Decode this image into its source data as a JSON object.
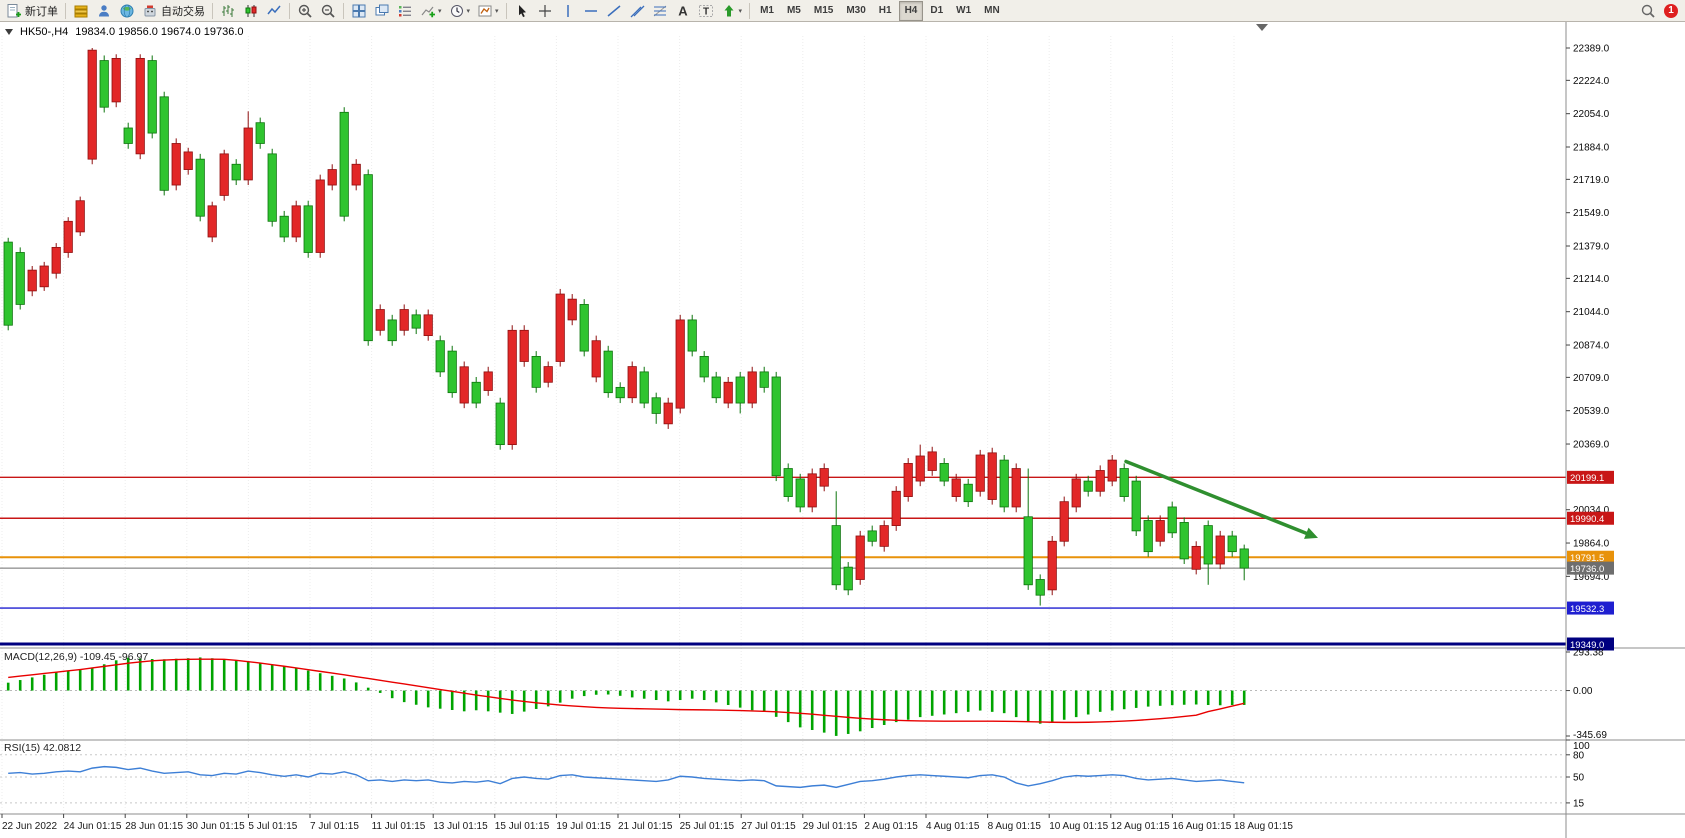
{
  "toolbar": {
    "new_order_label": "新订单",
    "autotrading_label": "自动交易",
    "timeframes": [
      "M1",
      "M5",
      "M15",
      "M30",
      "H1",
      "H4",
      "D1",
      "W1",
      "MN"
    ],
    "active_timeframe": "H4",
    "notification_count": "1"
  },
  "chart": {
    "symbol_period": "HK50-,H4",
    "ohlc_text": "19834.0 19856.0 19674.0 19736.0"
  },
  "indicators": {
    "macd": {
      "text": "MACD(12,26,9) -109.45 -96.97",
      "axis_labels": [
        {
          "v": 293.38,
          "t": "293.38"
        },
        {
          "v": 0,
          "t": "0.00"
        },
        {
          "v": -345.69,
          "t": "-345.69"
        }
      ]
    },
    "rsi": {
      "text": "RSI(15) 42.0812",
      "axis_labels": [
        {
          "v": 100,
          "t": "100"
        },
        {
          "v": 80,
          "t": "80"
        },
        {
          "v": 50,
          "t": "50"
        },
        {
          "v": 15,
          "t": "15"
        }
      ],
      "levels": [
        80,
        50,
        15
      ]
    }
  },
  "price_axis": {
    "regular": [
      22389,
      22224,
      22054,
      21884,
      21719,
      21549,
      21379,
      21214,
      21044,
      20874,
      20709,
      20539,
      20369,
      20034,
      19864,
      19694
    ],
    "badges": [
      {
        "price": 20199.1,
        "label": "20199.1",
        "color": "#c81616"
      },
      {
        "price": 19990.4,
        "label": "19990.4",
        "color": "#c81616"
      },
      {
        "price": 19791.5,
        "label": "19791.5",
        "color": "#e8920a"
      },
      {
        "price": 19736.0,
        "label": "19736.0",
        "color": "#6e6e6e"
      },
      {
        "price": 19532.3,
        "label": "19532.3",
        "color": "#1f1fd0"
      },
      {
        "price": 19349.0,
        "label": "19349.0",
        "color": "#000080"
      }
    ]
  },
  "time_axis": {
    "labels": [
      "22 Jun 2022",
      "24 Jun 01:15",
      "28 Jun 01:15",
      "30 Jun 01:15",
      "5 Jul 01:15",
      "7 Jul 01:15",
      "11 Jul 01:15",
      "13 Jul 01:15",
      "15 Jul 01:15",
      "19 Jul 01:15",
      "21 Jul 01:15",
      "25 Jul 01:15",
      "27 Jul 01:15",
      "29 Jul 01:15",
      "2 Aug 01:15",
      "4 Aug 01:15",
      "8 Aug 01:15",
      "10 Aug 01:15",
      "12 Aug 01:15",
      "16 Aug 01:15",
      "18 Aug 01:15"
    ]
  },
  "chart_data": {
    "type": "candlestick",
    "symbol": "HK50-",
    "period": "H4",
    "ohlc": {
      "open": 19834.0,
      "high": 19856.0,
      "low": 19674.0,
      "close": 19736.0
    },
    "price_range": {
      "max": 22389,
      "min": 19349
    },
    "up_color": "#e22828",
    "up_stroke": "#8f0f0f",
    "down_color": "#2fc42f",
    "down_stroke": "#0d750d",
    "candles": [
      [
        21399,
        21421,
        20949,
        20975
      ],
      [
        21346,
        21372,
        21055,
        21081
      ],
      [
        21150,
        21277,
        21123,
        21256
      ],
      [
        21171,
        21298,
        21150,
        21277
      ],
      [
        21240,
        21394,
        21213,
        21372
      ],
      [
        21346,
        21526,
        21319,
        21505
      ],
      [
        21451,
        21631,
        21430,
        21610
      ],
      [
        21822,
        22389,
        21796,
        22378
      ],
      [
        22325,
        22351,
        22060,
        22087
      ],
      [
        22114,
        22357,
        22087,
        22336
      ],
      [
        21981,
        22008,
        21875,
        21902
      ],
      [
        21849,
        22357,
        21822,
        22336
      ],
      [
        22325,
        22351,
        21928,
        21955
      ],
      [
        22140,
        22166,
        21637,
        21663
      ],
      [
        21690,
        21928,
        21663,
        21902
      ],
      [
        21769,
        21880,
        21743,
        21859
      ],
      [
        21822,
        21849,
        21505,
        21531
      ],
      [
        21425,
        21605,
        21399,
        21584
      ],
      [
        21637,
        21870,
        21610,
        21849
      ],
      [
        21796,
        21822,
        21690,
        21716
      ],
      [
        21716,
        22066,
        21690,
        21981
      ],
      [
        22008,
        22034,
        21875,
        21902
      ],
      [
        21849,
        21875,
        21478,
        21505
      ],
      [
        21531,
        21558,
        21399,
        21425
      ],
      [
        21425,
        21610,
        21399,
        21584
      ],
      [
        21584,
        21610,
        21319,
        21346
      ],
      [
        21346,
        21743,
        21319,
        21716
      ],
      [
        21690,
        21796,
        21663,
        21769
      ],
      [
        22061,
        22087,
        21505,
        21531
      ],
      [
        21690,
        21822,
        21663,
        21796
      ],
      [
        21743,
        21769,
        20870,
        20896
      ],
      [
        20949,
        21081,
        20922,
        21055
      ],
      [
        21002,
        21028,
        20870,
        20896
      ],
      [
        20949,
        21081,
        20922,
        21055
      ],
      [
        21028,
        21055,
        20930,
        20960
      ],
      [
        20922,
        21055,
        20896,
        21028
      ],
      [
        20896,
        20922,
        20711,
        20737
      ],
      [
        20843,
        20870,
        20605,
        20631
      ],
      [
        20578,
        20790,
        20552,
        20763
      ],
      [
        20684,
        20711,
        20552,
        20578
      ],
      [
        20642,
        20763,
        20615,
        20737
      ],
      [
        20578,
        20605,
        20340,
        20366
      ],
      [
        20366,
        20975,
        20340,
        20949
      ],
      [
        20790,
        20975,
        20763,
        20949
      ],
      [
        20816,
        20843,
        20631,
        20658
      ],
      [
        20684,
        20790,
        20658,
        20764
      ],
      [
        20790,
        21160,
        20764,
        21134
      ],
      [
        21002,
        21134,
        20975,
        21108
      ],
      [
        21081,
        21108,
        20816,
        20843
      ],
      [
        20711,
        20922,
        20684,
        20896
      ],
      [
        20843,
        20870,
        20605,
        20631
      ],
      [
        20658,
        20684,
        20578,
        20605
      ],
      [
        20605,
        20790,
        20578,
        20764
      ],
      [
        20737,
        20763,
        20552,
        20578
      ],
      [
        20605,
        20631,
        20472,
        20525
      ],
      [
        20472,
        20605,
        20446,
        20578
      ],
      [
        20552,
        21028,
        20525,
        21002
      ],
      [
        21002,
        21028,
        20816,
        20843
      ],
      [
        20816,
        20843,
        20684,
        20711
      ],
      [
        20711,
        20737,
        20578,
        20605
      ],
      [
        20578,
        20711,
        20552,
        20684
      ],
      [
        20711,
        20737,
        20525,
        20578
      ],
      [
        20578,
        20763,
        20552,
        20737
      ],
      [
        20737,
        20763,
        20631,
        20658
      ],
      [
        20711,
        20737,
        20180,
        20207
      ],
      [
        20244,
        20270,
        20075,
        20101
      ],
      [
        20191,
        20217,
        20021,
        20048
      ],
      [
        20048,
        20244,
        20021,
        20217
      ],
      [
        20154,
        20270,
        20128,
        20244
      ],
      [
        19953,
        20128,
        19625,
        19651
      ],
      [
        19741,
        19767,
        19598,
        19625
      ],
      [
        19678,
        19926,
        19651,
        19900
      ],
      [
        19926,
        19953,
        19847,
        19873
      ],
      [
        19847,
        19979,
        19820,
        19953
      ],
      [
        19953,
        20154,
        19926,
        20128
      ],
      [
        20101,
        20297,
        20075,
        20270
      ],
      [
        20180,
        20366,
        20154,
        20308
      ],
      [
        20234,
        20355,
        20207,
        20329
      ],
      [
        20270,
        20297,
        20154,
        20180
      ],
      [
        20101,
        20217,
        20075,
        20191
      ],
      [
        20164,
        20191,
        20048,
        20075
      ],
      [
        20128,
        20339,
        20101,
        20313
      ],
      [
        20086,
        20350,
        20060,
        20324
      ],
      [
        20287,
        20313,
        20021,
        20048
      ],
      [
        20048,
        20270,
        20021,
        20244
      ],
      [
        19998,
        20244,
        19625,
        19651
      ],
      [
        19678,
        19704,
        19545,
        19598
      ],
      [
        19625,
        19900,
        19598,
        19873
      ],
      [
        19873,
        20101,
        19847,
        20075
      ],
      [
        20048,
        20217,
        20021,
        20191
      ],
      [
        20180,
        20207,
        20101,
        20128
      ],
      [
        20128,
        20260,
        20101,
        20234
      ],
      [
        20180,
        20313,
        20154,
        20287
      ],
      [
        20244,
        20270,
        20075,
        20101
      ],
      [
        20180,
        20207,
        19900,
        19926
      ],
      [
        19979,
        20005,
        19794,
        19820
      ],
      [
        19873,
        20005,
        19847,
        19979
      ],
      [
        20048,
        20075,
        19890,
        19916
      ],
      [
        19969,
        19995,
        19757,
        19783
      ],
      [
        19730,
        19873,
        19704,
        19847
      ],
      [
        19953,
        19979,
        19651,
        19757
      ],
      [
        19757,
        19926,
        19731,
        19900
      ],
      [
        19900,
        19926,
        19794,
        19820
      ],
      [
        19834,
        19856,
        19674,
        19736
      ]
    ],
    "hlines": [
      {
        "price": 20199.1,
        "color": "#c81616",
        "width": 1.4
      },
      {
        "price": 19990.4,
        "color": "#c81616",
        "width": 1.4
      },
      {
        "price": 19791.5,
        "color": "#e8920a",
        "width": 2
      },
      {
        "price": 19736.0,
        "color": "#6e6e6e",
        "width": 1
      },
      {
        "price": 19532.3,
        "color": "#1f1fd0",
        "width": 1.4
      },
      {
        "price": 19349.0,
        "color": "#000080",
        "width": 3
      }
    ],
    "arrow": {
      "from_index": 93.5,
      "from_price": 20280,
      "to_index": 109.5,
      "to_price": 19890,
      "color": "#2f8f2f"
    },
    "macd": {
      "axis_max": 293.38,
      "axis_min": -345.69,
      "histogram": [
        60,
        80,
        100,
        120,
        140,
        150,
        160,
        175,
        200,
        230,
        250,
        245,
        240,
        238,
        242,
        246,
        252,
        246,
        238,
        228,
        218,
        208,
        196,
        184,
        172,
        152,
        132,
        112,
        92,
        62,
        22,
        -18,
        -58,
        -88,
        -108,
        -128,
        -138,
        -148,
        -158,
        -150,
        -158,
        -168,
        -178,
        -160,
        -140,
        -120,
        -92,
        -62,
        -42,
        -32,
        -30,
        -40,
        -52,
        -62,
        -72,
        -82,
        -72,
        -62,
        -72,
        -90,
        -110,
        -130,
        -150,
        -162,
        -200,
        -240,
        -280,
        -300,
        -320,
        -345,
        -330,
        -310,
        -285,
        -262,
        -240,
        -222,
        -202,
        -192,
        -182,
        -172,
        -162,
        -152,
        -162,
        -172,
        -202,
        -232,
        -252,
        -242,
        -222,
        -202,
        -182,
        -162,
        -152,
        -142,
        -132,
        -122,
        -116,
        -111,
        -108,
        -106,
        -110,
        -112,
        -110,
        -109.45
      ],
      "signal": [
        100,
        110,
        120,
        130,
        140,
        150,
        160,
        172,
        184,
        196,
        208,
        218,
        226,
        232,
        236,
        238,
        239,
        239,
        238,
        230,
        220,
        209,
        197,
        185,
        172,
        159,
        146,
        133,
        120,
        106,
        92,
        78,
        64,
        50,
        36,
        22,
        8,
        -6,
        -20,
        -34,
        -47,
        -60,
        -72,
        -83,
        -93,
        -102,
        -110,
        -117,
        -123,
        -128,
        -132,
        -135,
        -137,
        -139,
        -141,
        -143,
        -145,
        -146,
        -147,
        -148,
        -150,
        -152,
        -155,
        -158,
        -162,
        -167,
        -173,
        -180,
        -188,
        -196,
        -204,
        -211,
        -217,
        -222,
        -226,
        -229,
        -231,
        -232,
        -233,
        -233,
        -233,
        -233,
        -233,
        -234,
        -235,
        -237,
        -239,
        -241,
        -242,
        -242,
        -241,
        -239,
        -236,
        -232,
        -227,
        -221,
        -214,
        -206,
        -197,
        -187,
        -160,
        -140,
        -118,
        -96.97
      ]
    },
    "rsi": {
      "values": [
        55,
        56,
        54,
        55,
        57,
        58,
        57,
        62,
        64,
        63,
        60,
        62,
        58,
        55,
        56,
        57,
        53,
        52,
        55,
        54,
        58,
        56,
        53,
        51,
        53,
        50,
        55,
        54,
        57,
        53,
        45,
        46,
        44,
        46,
        45,
        46,
        43,
        42,
        44,
        43,
        45,
        41,
        48,
        50,
        48,
        47,
        52,
        53,
        50,
        49,
        48,
        47,
        46,
        45,
        44,
        46,
        51,
        50,
        48,
        47,
        46,
        45,
        46,
        45,
        38,
        37,
        36,
        38,
        39,
        36,
        40,
        44,
        45,
        47,
        50,
        52,
        53,
        52,
        51,
        50,
        49,
        52,
        53,
        50,
        42,
        38,
        41,
        45,
        50,
        52,
        51,
        52,
        53,
        52,
        48,
        46,
        47,
        48,
        46,
        44,
        45,
        46,
        44,
        42.08
      ]
    }
  }
}
